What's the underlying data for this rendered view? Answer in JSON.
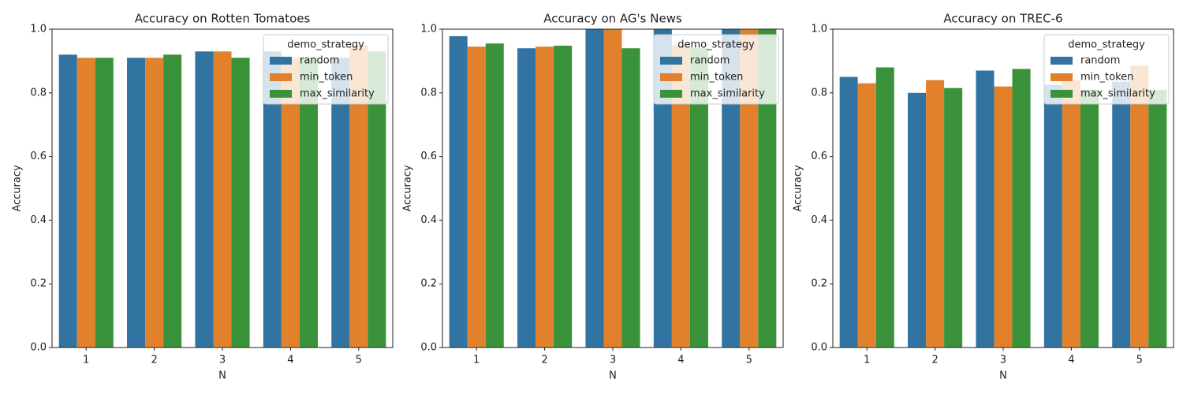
{
  "chart_data": [
    {
      "type": "bar",
      "title": "Accuracy on Rotten Tomatoes",
      "x_label": "N",
      "y_label": "Accuracy",
      "categories": [
        "1",
        "2",
        "3",
        "4",
        "5"
      ],
      "legend_title": "demo_strategy",
      "legend": "upper right",
      "series": [
        {
          "name": "random",
          "color": "#3274a1",
          "values": [
            0.92,
            0.91,
            0.93,
            0.93,
            0.91
          ]
        },
        {
          "name": "min_token",
          "color": "#e1812c",
          "values": [
            0.91,
            0.91,
            0.93,
            0.91,
            0.95
          ]
        },
        {
          "name": "max_similarity",
          "color": "#3a923a",
          "values": [
            0.91,
            0.92,
            0.91,
            0.91,
            0.93
          ]
        }
      ],
      "ylim": [
        0,
        1
      ],
      "yticks": [
        {
          "value": 0,
          "label": "0.0"
        },
        0.2,
        0.4,
        0.6,
        0.8,
        {
          "value": 1,
          "label": "1.0"
        }
      ]
    },
    {
      "type": "bar",
      "title": "Accuracy on AG's News",
      "x_label": "N",
      "y_label": "Accuracy",
      "categories": [
        "1",
        "2",
        "3",
        "4",
        "5"
      ],
      "legend_title": "demo_strategy",
      "legend": "upper right",
      "series": [
        {
          "name": "random",
          "color": "#3274a1",
          "values": [
            0.978,
            0.94,
            1.0,
            1.0,
            1.0
          ]
        },
        {
          "name": "min_token",
          "color": "#e1812c",
          "values": [
            0.945,
            0.945,
            1.0,
            0.95,
            1.0
          ]
        },
        {
          "name": "max_similarity",
          "color": "#3a923a",
          "values": [
            0.955,
            0.948,
            0.94,
            0.94,
            1.0
          ]
        }
      ],
      "ylim": [
        0,
        1
      ],
      "yticks": [
        {
          "value": 0,
          "label": "0.0"
        },
        0.2,
        0.4,
        0.6,
        0.8,
        {
          "value": 1,
          "label": "1.0"
        }
      ]
    },
    {
      "type": "bar",
      "title": "Accuracy on TREC-6",
      "x_label": "N",
      "y_label": "Accuracy",
      "categories": [
        "1",
        "2",
        "3",
        "4",
        "5"
      ],
      "legend_title": "demo_strategy",
      "legend": "upper right",
      "series": [
        {
          "name": "random",
          "color": "#3274a1",
          "values": [
            0.85,
            0.8,
            0.87,
            0.825,
            0.835
          ]
        },
        {
          "name": "min_token",
          "color": "#e1812c",
          "values": [
            0.83,
            0.84,
            0.82,
            0.84,
            0.885
          ]
        },
        {
          "name": "max_similarity",
          "color": "#3a923a",
          "values": [
            0.88,
            0.815,
            0.875,
            0.81,
            0.81
          ]
        }
      ],
      "ylim": [
        0,
        1
      ],
      "yticks": [
        {
          "value": 0,
          "label": "0.0"
        },
        0.2,
        0.4,
        0.6,
        0.8,
        {
          "value": 1,
          "label": "1.0"
        }
      ]
    }
  ]
}
